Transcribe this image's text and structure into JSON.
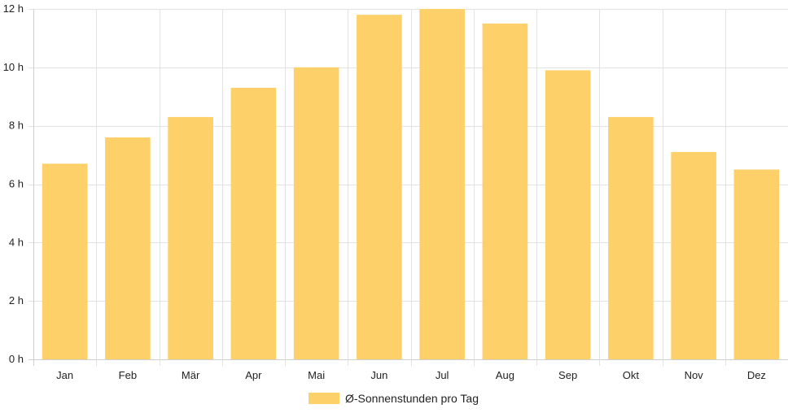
{
  "chart_data": {
    "type": "bar",
    "categories": [
      "Jan",
      "Feb",
      "Mär",
      "Apr",
      "Mai",
      "Jun",
      "Jul",
      "Aug",
      "Sep",
      "Okt",
      "Nov",
      "Dez"
    ],
    "series": [
      {
        "name": "Ø-Sonnenstunden pro Tag",
        "color": "#fdd06a",
        "values": [
          6.7,
          7.6,
          8.3,
          9.3,
          10.0,
          11.8,
          12.0,
          11.5,
          9.9,
          8.3,
          7.1,
          6.5
        ]
      }
    ],
    "ylim": [
      0,
      12
    ],
    "yticks": [
      0,
      2,
      4,
      6,
      8,
      10,
      12
    ],
    "ytick_labels": [
      "0 h",
      "2 h",
      "4 h",
      "6 h",
      "8 h",
      "10 h",
      "12 h"
    ],
    "grid": true,
    "legend": "bottom-center",
    "title": "",
    "xlabel": "",
    "ylabel": ""
  }
}
